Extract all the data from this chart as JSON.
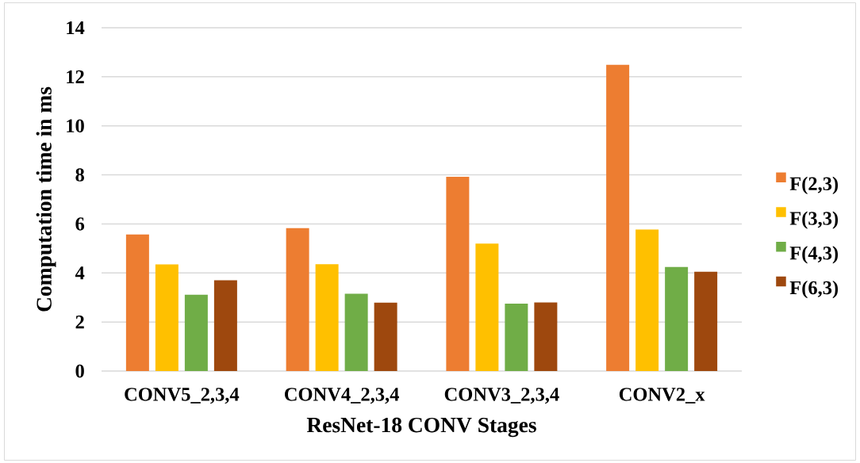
{
  "chart_data": {
    "type": "bar",
    "xlabel": "ResNet-18 CONV Stages",
    "ylabel": "Computation time in ms",
    "categories": [
      "CONV5_2,3,4",
      "CONV4_2,3,4",
      "CONV3_2,3,4",
      "CONV2_x"
    ],
    "series": [
      {
        "name": "F(2,3)",
        "color": "#ed7d31",
        "values": [
          5.57,
          5.83,
          7.92,
          12.49
        ]
      },
      {
        "name": "F(3,3)",
        "color": "#ffc000",
        "values": [
          4.35,
          4.36,
          5.2,
          5.77
        ]
      },
      {
        "name": "F(4,3)",
        "color": "#70ad47",
        "values": [
          3.11,
          3.15,
          2.75,
          4.24
        ]
      },
      {
        "name": "F(6,3)",
        "color": "#9e480e",
        "values": [
          3.7,
          2.79,
          2.8,
          4.05
        ]
      }
    ],
    "ylim": [
      0,
      14
    ],
    "yticks": [
      0,
      2,
      4,
      6,
      8,
      10,
      12,
      14
    ],
    "grid": "y",
    "legend": "right"
  }
}
